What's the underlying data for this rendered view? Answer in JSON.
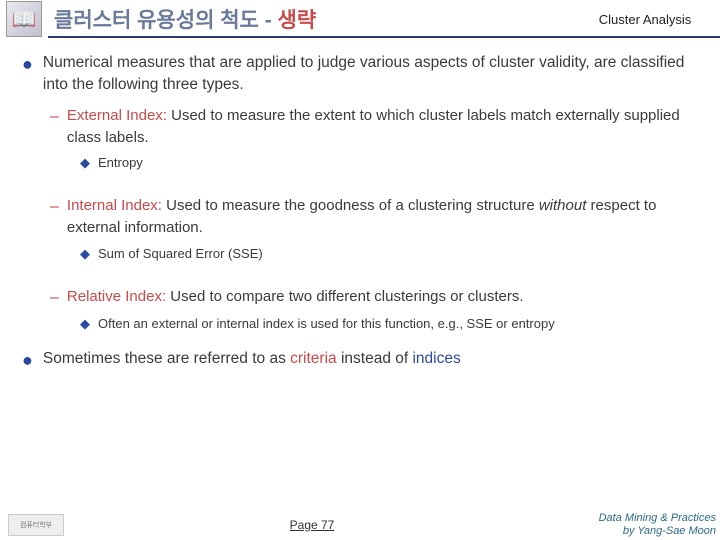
{
  "header": {
    "icon_glyph": "📖",
    "title_main": "클러스터 유용성의 척도 - ",
    "title_highlight": "생략",
    "right_label": "Cluster Analysis"
  },
  "body": {
    "b1": "Numerical measures that are applied to judge various aspects of cluster validity, are classified into the following three types.",
    "ext_label": "External Index:",
    "ext_text": " Used to measure the extent to which cluster labels match externally supplied class labels.",
    "ext_sub": "Entropy",
    "int_label": "Internal Index:",
    "int_text_a": "  Used to measure the goodness of a clustering structure ",
    "int_text_b": "without",
    "int_text_c": " respect to external information.",
    "int_sub": "Sum of Squared Error (SSE)",
    "rel_label": "Relative Index:",
    "rel_text": " Used to compare two different clusterings or clusters.",
    "rel_sub": "Often an external or internal index is used for this function, e.g., SSE or entropy",
    "b2_a": "Sometimes these are referred to as ",
    "b2_crit": "criteria",
    "b2_b": " instead of ",
    "b2_idx": "indices"
  },
  "footer": {
    "logo_text": "컴퓨터학부",
    "page": "Page 77",
    "credit1": "Data Mining & Practices",
    "credit2": "by Yang-Sae Moon"
  },
  "colors": {
    "title_gray": "#6a7a9a",
    "accent_red": "#c94a4a",
    "accent_blue": "#2a4aa0",
    "rule": "#2a3a7a",
    "footer_credit": "#2a6a8a"
  }
}
